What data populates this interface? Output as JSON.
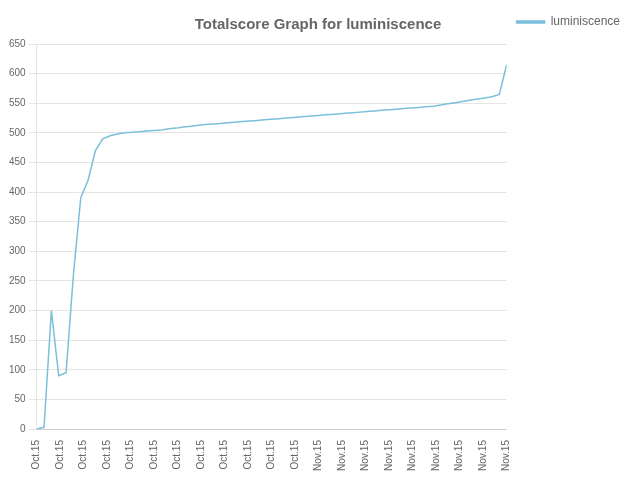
{
  "chart_data": {
    "type": "line",
    "title": "Totalscore Graph for luminiscence",
    "x": [
      0,
      1,
      2,
      3,
      4,
      5,
      6,
      7,
      8,
      9,
      10,
      11,
      12,
      13,
      14,
      15,
      16,
      17,
      18,
      19,
      20,
      21,
      22,
      23,
      24,
      25,
      26,
      27,
      28,
      29,
      30,
      31,
      32,
      33,
      34,
      35,
      36,
      37,
      38,
      39,
      40,
      41,
      42,
      43,
      44,
      45,
      46,
      47,
      48,
      49,
      50,
      51,
      52,
      53,
      54,
      55,
      56,
      57,
      58,
      59,
      60,
      61,
      62,
      63,
      64
    ],
    "series": [
      {
        "name": "luminiscence",
        "color": "#7bbfdb",
        "values": [
          0,
          3,
          200,
          90,
          95,
          260,
          390,
          420,
          470,
          490,
          495,
          498,
          500,
          501,
          502,
          503,
          504,
          505,
          507,
          508,
          510,
          511,
          513,
          514,
          515,
          516,
          517,
          518,
          519,
          520,
          521,
          522,
          523,
          524,
          525,
          526,
          527,
          528,
          529,
          530,
          531,
          532,
          533,
          534,
          535,
          536,
          537,
          538,
          539,
          540,
          541,
          542,
          543,
          544,
          545,
          547,
          549,
          551,
          553,
          555,
          557,
          559,
          561,
          565,
          615
        ]
      }
    ],
    "xlim": [
      0,
      64
    ],
    "xticks": [
      {
        "value": 0,
        "label": "Oct.15"
      },
      {
        "value": 3.2,
        "label": "Oct.15"
      },
      {
        "value": 6.4,
        "label": "Oct.15"
      },
      {
        "value": 9.6,
        "label": "Oct.15"
      },
      {
        "value": 12.8,
        "label": "Oct.15"
      },
      {
        "value": 16,
        "label": "Oct.15"
      },
      {
        "value": 19.2,
        "label": "Oct.15"
      },
      {
        "value": 22.4,
        "label": "Oct.15"
      },
      {
        "value": 25.6,
        "label": "Oct.15"
      },
      {
        "value": 28.8,
        "label": "Oct.15"
      },
      {
        "value": 32,
        "label": "Oct.15"
      },
      {
        "value": 35.2,
        "label": "Oct.15"
      },
      {
        "value": 38.4,
        "label": "Nov.15"
      },
      {
        "value": 41.6,
        "label": "Nov.15"
      },
      {
        "value": 44.8,
        "label": "Nov.15"
      },
      {
        "value": 48,
        "label": "Nov.15"
      },
      {
        "value": 51.2,
        "label": "Nov.15"
      },
      {
        "value": 54.4,
        "label": "Nov.15"
      },
      {
        "value": 57.6,
        "label": "Nov.15"
      },
      {
        "value": 60.8,
        "label": "Nov.15"
      },
      {
        "value": 64,
        "label": "Nov.15"
      }
    ],
    "ylim": [
      0,
      650
    ],
    "yticks": [
      0,
      50,
      100,
      150,
      200,
      250,
      300,
      350,
      400,
      450,
      500,
      550,
      600,
      650
    ],
    "grid": "y",
    "legend": "upper right"
  }
}
